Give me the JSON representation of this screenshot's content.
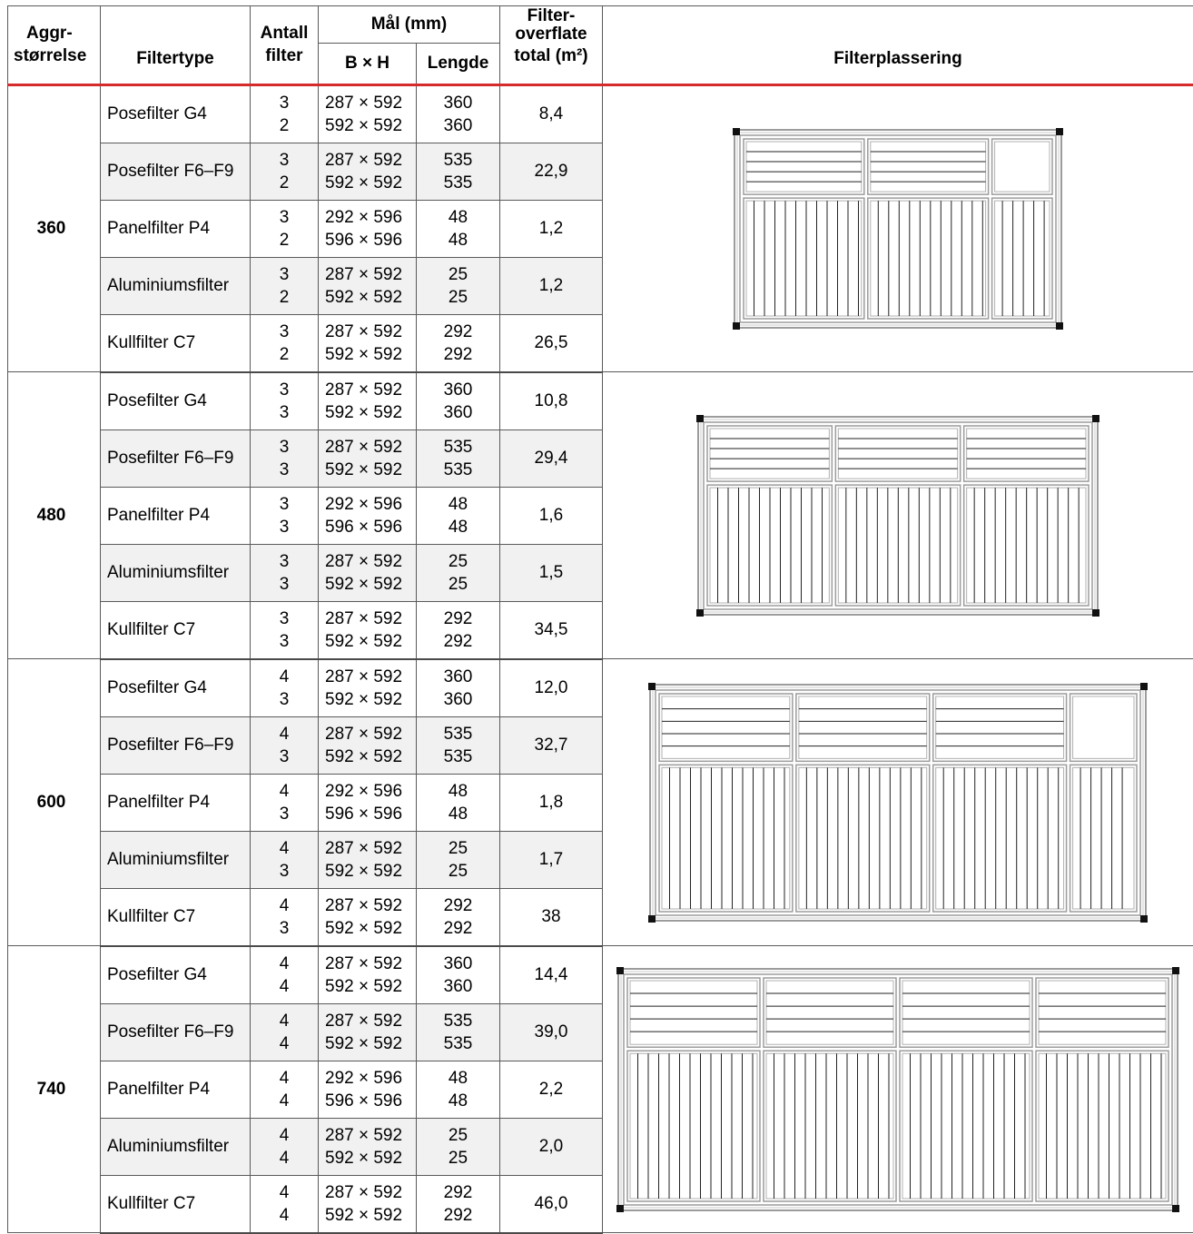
{
  "headers": {
    "aggr_top": "Aggr-",
    "aggr_bottom": "størrelse",
    "filtertype": "Filtertype",
    "antall_top": "Antall",
    "antall_bottom": "filter",
    "mal": "Mål (mm)",
    "bxh": "B × H",
    "lengde": "Lengde",
    "flate_top": "Filter-",
    "flate_mid": "overflate",
    "flate_bottom": "total (m²)",
    "plassering": "Filterplassering"
  },
  "colors": {
    "header_rule": "#d62b2b",
    "alt_row": "#f1f1f1",
    "grid": "#5a5a5a"
  },
  "groups": [
    {
      "size": "360",
      "diagram": {
        "cols": 3,
        "last_narrow": true,
        "narrow_top_empty": true
      },
      "rows": [
        {
          "type": "Posefilter G4",
          "antall": [
            "3",
            "2"
          ],
          "bxh": [
            "287 × 592",
            "592 × 592"
          ],
          "lengde": [
            "360",
            "360"
          ],
          "total": "8,4"
        },
        {
          "type": "Posefilter F6–F9",
          "antall": [
            "3",
            "2"
          ],
          "bxh": [
            "287 × 592",
            "592 × 592"
          ],
          "lengde": [
            "535",
            "535"
          ],
          "total": "22,9"
        },
        {
          "type": "Panelfilter P4",
          "antall": [
            "3",
            "2"
          ],
          "bxh": [
            "292 × 596",
            "596 × 596"
          ],
          "lengde": [
            "48",
            "48"
          ],
          "total": "1,2"
        },
        {
          "type": "Aluminiumsfilter",
          "antall": [
            "3",
            "2"
          ],
          "bxh": [
            "287 × 592",
            "592 × 592"
          ],
          "lengde": [
            "25",
            "25"
          ],
          "total": "1,2"
        },
        {
          "type": "Kullfilter C7",
          "antall": [
            "3",
            "2"
          ],
          "bxh": [
            "287 × 592",
            "592 × 592"
          ],
          "lengde": [
            "292",
            "292"
          ],
          "total": "26,5"
        }
      ]
    },
    {
      "size": "480",
      "diagram": {
        "cols": 3,
        "last_narrow": false,
        "narrow_top_empty": false
      },
      "rows": [
        {
          "type": "Posefilter G4",
          "antall": [
            "3",
            "3"
          ],
          "bxh": [
            "287 × 592",
            "592 × 592"
          ],
          "lengde": [
            "360",
            "360"
          ],
          "total": "10,8"
        },
        {
          "type": "Posefilter F6–F9",
          "antall": [
            "3",
            "3"
          ],
          "bxh": [
            "287 × 592",
            "592 × 592"
          ],
          "lengde": [
            "535",
            "535"
          ],
          "total": "29,4"
        },
        {
          "type": "Panelfilter P4",
          "antall": [
            "3",
            "3"
          ],
          "bxh": [
            "292 × 596",
            "596 × 596"
          ],
          "lengde": [
            "48",
            "48"
          ],
          "total": "1,6"
        },
        {
          "type": "Aluminiumsfilter",
          "antall": [
            "3",
            "3"
          ],
          "bxh": [
            "287 × 592",
            "592 × 592"
          ],
          "lengde": [
            "25",
            "25"
          ],
          "total": "1,5"
        },
        {
          "type": "Kullfilter C7",
          "antall": [
            "3",
            "3"
          ],
          "bxh": [
            "287 × 592",
            "592 × 592"
          ],
          "lengde": [
            "292",
            "292"
          ],
          "total": "34,5"
        }
      ]
    },
    {
      "size": "600",
      "diagram": {
        "cols": 4,
        "last_narrow": true,
        "narrow_top_empty": true
      },
      "rows": [
        {
          "type": "Posefilter G4",
          "antall": [
            "4",
            "3"
          ],
          "bxh": [
            "287 × 592",
            "592 × 592"
          ],
          "lengde": [
            "360",
            "360"
          ],
          "total": "12,0"
        },
        {
          "type": "Posefilter F6–F9",
          "antall": [
            "4",
            "3"
          ],
          "bxh": [
            "287 × 592",
            "592 × 592"
          ],
          "lengde": [
            "535",
            "535"
          ],
          "total": "32,7"
        },
        {
          "type": "Panelfilter P4",
          "antall": [
            "4",
            "3"
          ],
          "bxh": [
            "292 × 596",
            "596 × 596"
          ],
          "lengde": [
            "48",
            "48"
          ],
          "total": "1,8"
        },
        {
          "type": "Aluminiumsfilter",
          "antall": [
            "4",
            "3"
          ],
          "bxh": [
            "287 × 592",
            "592 × 592"
          ],
          "lengde": [
            "25",
            "25"
          ],
          "total": "1,7"
        },
        {
          "type": "Kullfilter C7",
          "antall": [
            "4",
            "3"
          ],
          "bxh": [
            "287 × 592",
            "592 × 592"
          ],
          "lengde": [
            "292",
            "292"
          ],
          "total": "38"
        }
      ]
    },
    {
      "size": "740",
      "diagram": {
        "cols": 4,
        "last_narrow": false,
        "narrow_top_empty": false
      },
      "rows": [
        {
          "type": "Posefilter G4",
          "antall": [
            "4",
            "4"
          ],
          "bxh": [
            "287 × 592",
            "592 × 592"
          ],
          "lengde": [
            "360",
            "360"
          ],
          "total": "14,4"
        },
        {
          "type": "Posefilter F6–F9",
          "antall": [
            "4",
            "4"
          ],
          "bxh": [
            "287 × 592",
            "592 × 592"
          ],
          "lengde": [
            "535",
            "535"
          ],
          "total": "39,0"
        },
        {
          "type": "Panelfilter P4",
          "antall": [
            "4",
            "4"
          ],
          "bxh": [
            "292 × 596",
            "596 × 596"
          ],
          "lengde": [
            "48",
            "48"
          ],
          "total": "2,2"
        },
        {
          "type": "Aluminiumsfilter",
          "antall": [
            "4",
            "4"
          ],
          "bxh": [
            "287 × 592",
            "592 × 592"
          ],
          "lengde": [
            "25",
            "25"
          ],
          "total": "2,0"
        },
        {
          "type": "Kullfilter C7",
          "antall": [
            "4",
            "4"
          ],
          "bxh": [
            "287 × 592",
            "592 × 592"
          ],
          "lengde": [
            "292",
            "292"
          ],
          "total": "46,0"
        }
      ]
    }
  ]
}
